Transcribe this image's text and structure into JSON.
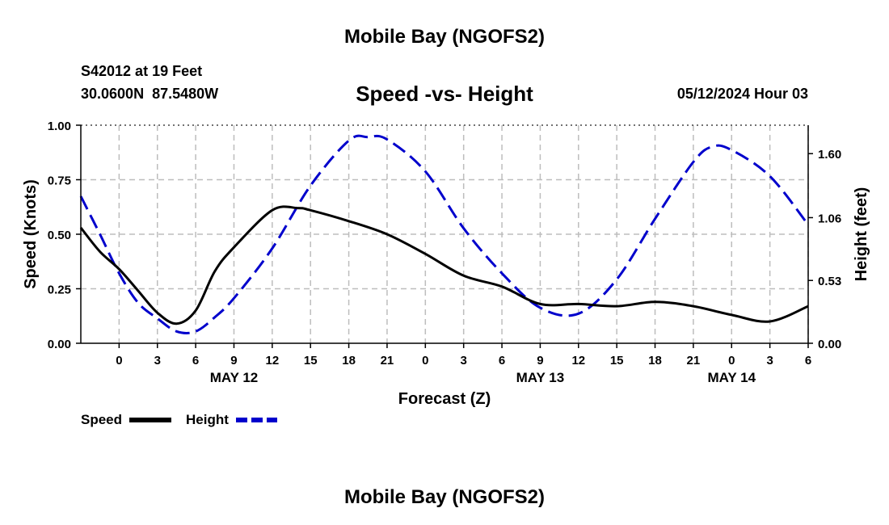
{
  "page_title": "Mobile Bay (NGOFS2)",
  "station": {
    "name_line": "S42012 at 19 Feet",
    "coords_line": "30.0600N  87.5480W",
    "datetime": "05/12/2024 Hour 03"
  },
  "chart_data": {
    "type": "line",
    "title": "Speed -vs- Height",
    "xlabel": "Forecast (Z)",
    "ylabel_left": "Speed (Knots)",
    "ylabel_right": "Height (feet)",
    "x_unit": "hours since May 12 00Z",
    "xlim": [
      -3,
      54
    ],
    "ylim_left": [
      0,
      1.0
    ],
    "ylim_right": [
      0,
      1.84
    ],
    "yticks_left": [
      "0.00",
      "0.25",
      "0.50",
      "0.75",
      "1.00"
    ],
    "yticks_left_values": [
      0,
      0.25,
      0.5,
      0.75,
      1.0
    ],
    "yticks_right": [
      "0.00",
      "0.53",
      "1.06",
      "1.60"
    ],
    "yticks_right_values": [
      0,
      0.53,
      1.06,
      1.6
    ],
    "xtick_labels": [
      "0",
      "3",
      "6",
      "9",
      "12",
      "15",
      "18",
      "21",
      "0",
      "3",
      "6",
      "9",
      "12",
      "15",
      "18",
      "21",
      "0",
      "3",
      "6"
    ],
    "date_labels": [
      {
        "label": "MAY 12",
        "hour": 9
      },
      {
        "label": "MAY 13",
        "hour": 33
      },
      {
        "label": "MAY 14",
        "hour": 48
      }
    ],
    "grid": true,
    "series": [
      {
        "name": "Speed",
        "axis": "left",
        "color": "#000000",
        "style": "solid",
        "x": [
          -3,
          -1.5,
          0,
          1.5,
          3,
          4.5,
          6,
          7.5,
          9,
          12,
          14,
          15,
          18,
          21,
          24,
          27,
          30,
          33,
          36,
          39,
          42,
          45,
          48,
          51,
          54
        ],
        "y": [
          0.53,
          0.42,
          0.34,
          0.24,
          0.14,
          0.09,
          0.15,
          0.33,
          0.44,
          0.61,
          0.62,
          0.61,
          0.56,
          0.5,
          0.41,
          0.31,
          0.26,
          0.18,
          0.18,
          0.17,
          0.19,
          0.17,
          0.13,
          0.1,
          0.17
        ]
      },
      {
        "name": "Height",
        "axis": "right",
        "color": "#0000cc",
        "style": "dashed",
        "x": [
          -3,
          -1.5,
          0,
          1.5,
          3,
          4.5,
          6,
          7.5,
          9,
          12,
          15,
          18,
          19.5,
          21,
          24,
          27,
          30,
          33,
          36,
          39,
          42,
          45,
          46.5,
          48,
          51,
          54
        ],
        "y": [
          1.24,
          0.92,
          0.59,
          0.34,
          0.21,
          0.1,
          0.1,
          0.22,
          0.38,
          0.8,
          1.33,
          1.71,
          1.74,
          1.72,
          1.45,
          0.97,
          0.59,
          0.3,
          0.25,
          0.54,
          1.05,
          1.53,
          1.66,
          1.63,
          1.41,
          1.0
        ]
      }
    ],
    "legend": {
      "placement": "bottom-left",
      "items": [
        "Speed",
        "Height"
      ]
    }
  },
  "footer_title": "Mobile Bay (NGOFS2)"
}
